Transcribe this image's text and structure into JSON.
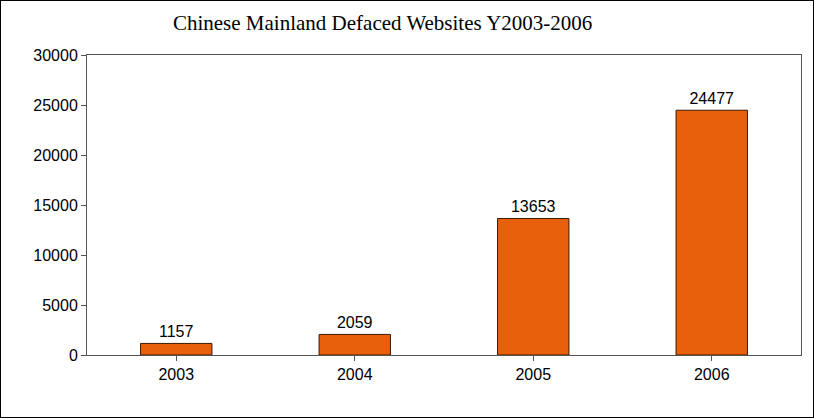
{
  "chart_data": {
    "type": "bar",
    "title": "Chinese Mainland Defaced Websites Y2003-2006",
    "categories": [
      "2003",
      "2004",
      "2005",
      "2006"
    ],
    "values": [
      1157,
      2059,
      13653,
      24477
    ],
    "color": "#e8600c",
    "ylim": [
      0,
      30000
    ],
    "yticks": [
      0,
      5000,
      10000,
      15000,
      20000,
      25000,
      30000
    ],
    "grid": false,
    "data_labels": true
  }
}
